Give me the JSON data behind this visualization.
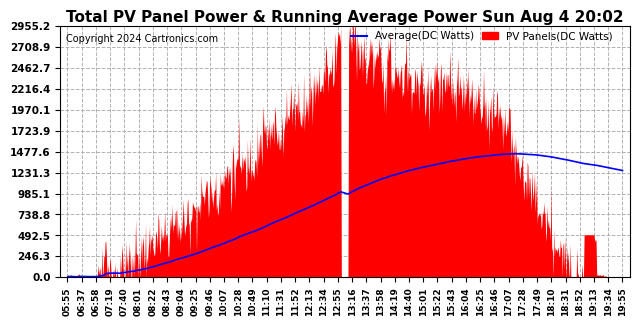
{
  "title": "Total PV Panel Power & Running Average Power Sun Aug 4 20:02",
  "copyright": "Copyright 2024 Cartronics.com",
  "legend_avg": "Average(DC Watts)",
  "legend_pv": "PV Panels(DC Watts)",
  "y_max": 2955.2,
  "y_min": 0.0,
  "y_ticks": [
    0.0,
    246.3,
    492.5,
    738.8,
    985.1,
    1231.3,
    1477.6,
    1723.9,
    1970.1,
    2216.4,
    2462.7,
    2708.9,
    2955.2
  ],
  "x_tick_labels": [
    "05:55",
    "06:37",
    "06:58",
    "07:19",
    "07:40",
    "08:01",
    "08:22",
    "08:43",
    "09:04",
    "09:25",
    "09:46",
    "10:07",
    "10:28",
    "10:49",
    "11:10",
    "11:31",
    "11:52",
    "12:13",
    "12:34",
    "12:55",
    "13:16",
    "13:37",
    "13:58",
    "14:19",
    "14:40",
    "15:01",
    "15:22",
    "15:43",
    "16:04",
    "16:25",
    "16:46",
    "17:07",
    "17:28",
    "17:49",
    "18:10",
    "18:31",
    "18:52",
    "19:13",
    "19:34",
    "19:55"
  ],
  "pv_color": "#ff0000",
  "avg_color": "#0000ff",
  "bg_color": "#ffffff",
  "grid_color": "#aaaaaa",
  "title_color": "#000000",
  "copyright_color": "#000000",
  "title_fontsize": 11,
  "copyright_fontsize": 7,
  "ytick_fontsize": 7.5,
  "xtick_fontsize": 6.5
}
